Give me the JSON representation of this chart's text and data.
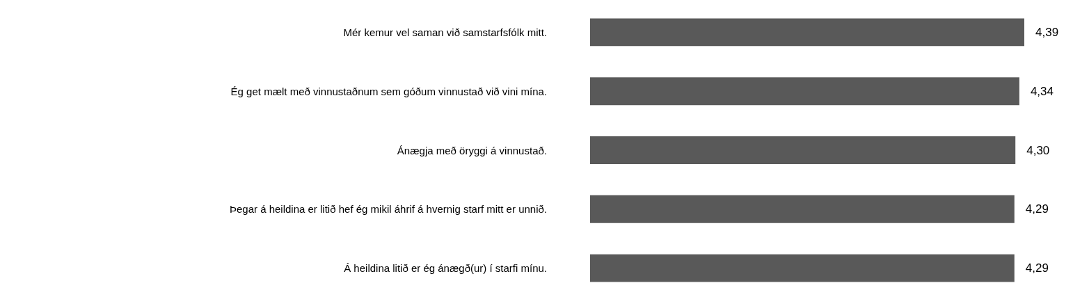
{
  "chart_data": {
    "type": "bar",
    "orientation": "horizontal",
    "categories": [
      "Mér kemur vel saman við samstarfsfólk mitt.",
      "Ég get mælt með vinnustaðnum sem góðum vinnustað við vini mína.",
      "Ánægja með öryggi á vinnustað.",
      "Þegar á heildina er litið hef ég mikil áhrif á hvernig starf mitt er unnið.",
      "Á heildina litið er ég ánægð(ur) í starfi mínu."
    ],
    "values": [
      4.39,
      4.34,
      4.3,
      4.29,
      4.29
    ],
    "value_labels": [
      "4,39",
      "4,34",
      "4,30",
      "4,29",
      "4,29"
    ],
    "color": "#595959"
  }
}
